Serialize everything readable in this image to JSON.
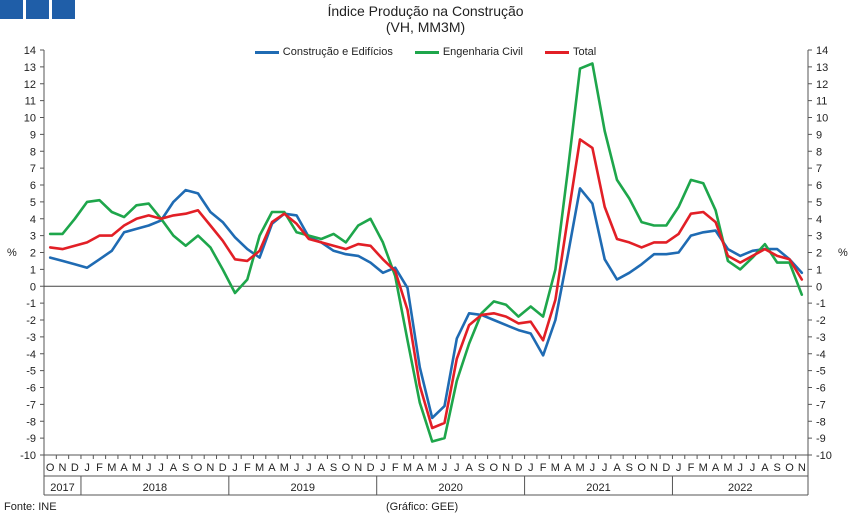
{
  "header": {
    "title": "Índice Produção na Construção",
    "subtitle": "(VH, MM3M)"
  },
  "footer": {
    "source": "Fonte: INE",
    "credit": "(Gráfico: GEE)"
  },
  "chart_data": {
    "type": "line",
    "ylabel_left": "%",
    "ylabel_right": "%",
    "ylim": [
      -10,
      14
    ],
    "yticks": [
      14,
      13,
      12,
      11,
      10,
      9,
      8,
      7,
      6,
      5,
      4,
      3,
      2,
      1,
      0,
      -1,
      -2,
      -3,
      -4,
      -5,
      -6,
      -7,
      -8,
      -9,
      -10
    ],
    "month_labels": [
      "O",
      "N",
      "D",
      "J",
      "F",
      "M",
      "A",
      "M",
      "J",
      "J",
      "A",
      "S",
      "O",
      "N",
      "D",
      "J",
      "F",
      "M",
      "A",
      "M",
      "J",
      "J",
      "A",
      "S",
      "O",
      "N",
      "D",
      "J",
      "F",
      "M",
      "A",
      "M",
      "J",
      "J",
      "A",
      "S",
      "O",
      "N",
      "D",
      "J",
      "F",
      "M",
      "A",
      "M",
      "J",
      "J",
      "A",
      "S",
      "O",
      "N",
      "D",
      "J",
      "F",
      "M",
      "A",
      "M",
      "J",
      "J",
      "A",
      "S",
      "O",
      "N"
    ],
    "years": [
      "2017",
      "2018",
      "2019",
      "2020",
      "2021",
      "2022"
    ],
    "legend_position": "top",
    "grid": false,
    "series": [
      {
        "name": "Construção e Edifícios",
        "color": "#1f6bb3",
        "values": [
          1.7,
          1.5,
          1.3,
          1.1,
          1.6,
          2.1,
          3.2,
          3.4,
          3.6,
          3.9,
          5.0,
          5.7,
          5.5,
          4.4,
          3.8,
          2.9,
          2.2,
          1.7,
          3.7,
          4.3,
          4.2,
          2.9,
          2.6,
          2.1,
          1.9,
          1.8,
          1.4,
          0.8,
          1.1,
          -0.1,
          -4.8,
          -7.8,
          -7.1,
          -3.1,
          -1.6,
          -1.7,
          -2.0,
          -2.3,
          -2.6,
          -2.8,
          -4.1,
          -2.0,
          1.8,
          5.8,
          4.9,
          1.6,
          0.4,
          0.8,
          1.3,
          1.9,
          1.9,
          2.0,
          3.0,
          3.2,
          3.3,
          2.2,
          1.8,
          2.1,
          2.2,
          2.2,
          1.6,
          0.8
        ]
      },
      {
        "name": "Engenharia Civil",
        "color": "#1ea64b",
        "values": [
          3.1,
          3.1,
          4.0,
          5.0,
          5.1,
          4.4,
          4.1,
          4.8,
          4.9,
          4.0,
          3.0,
          2.4,
          3.0,
          2.3,
          1.0,
          -0.4,
          0.4,
          3.0,
          4.4,
          4.4,
          3.2,
          3.0,
          2.8,
          3.1,
          2.6,
          3.6,
          4.0,
          2.6,
          0.6,
          -3.2,
          -6.9,
          -9.2,
          -9.0,
          -5.6,
          -3.4,
          -1.6,
          -0.9,
          -1.1,
          -1.8,
          -1.2,
          -1.8,
          1.0,
          6.8,
          12.9,
          13.2,
          9.2,
          6.3,
          5.2,
          3.8,
          3.6,
          3.6,
          4.7,
          6.3,
          6.1,
          4.5,
          1.5,
          1.0,
          1.7,
          2.5,
          1.4,
          1.4,
          -0.5
        ]
      },
      {
        "name": "Total",
        "color": "#e21f26",
        "values": [
          2.3,
          2.2,
          2.4,
          2.6,
          3.0,
          3.0,
          3.6,
          4.0,
          4.2,
          4.0,
          4.2,
          4.3,
          4.5,
          3.6,
          2.7,
          1.6,
          1.5,
          2.1,
          3.8,
          4.3,
          3.7,
          2.8,
          2.6,
          2.4,
          2.2,
          2.5,
          2.4,
          1.6,
          0.9,
          -1.4,
          -5.9,
          -8.4,
          -8.1,
          -4.3,
          -2.3,
          -1.7,
          -1.6,
          -1.8,
          -2.2,
          -2.1,
          -3.2,
          -0.8,
          4.0,
          8.7,
          8.2,
          4.7,
          2.8,
          2.6,
          2.3,
          2.6,
          2.6,
          3.1,
          4.3,
          4.4,
          3.8,
          1.8,
          1.4,
          1.8,
          2.2,
          1.8,
          1.6,
          0.4
        ]
      }
    ]
  }
}
